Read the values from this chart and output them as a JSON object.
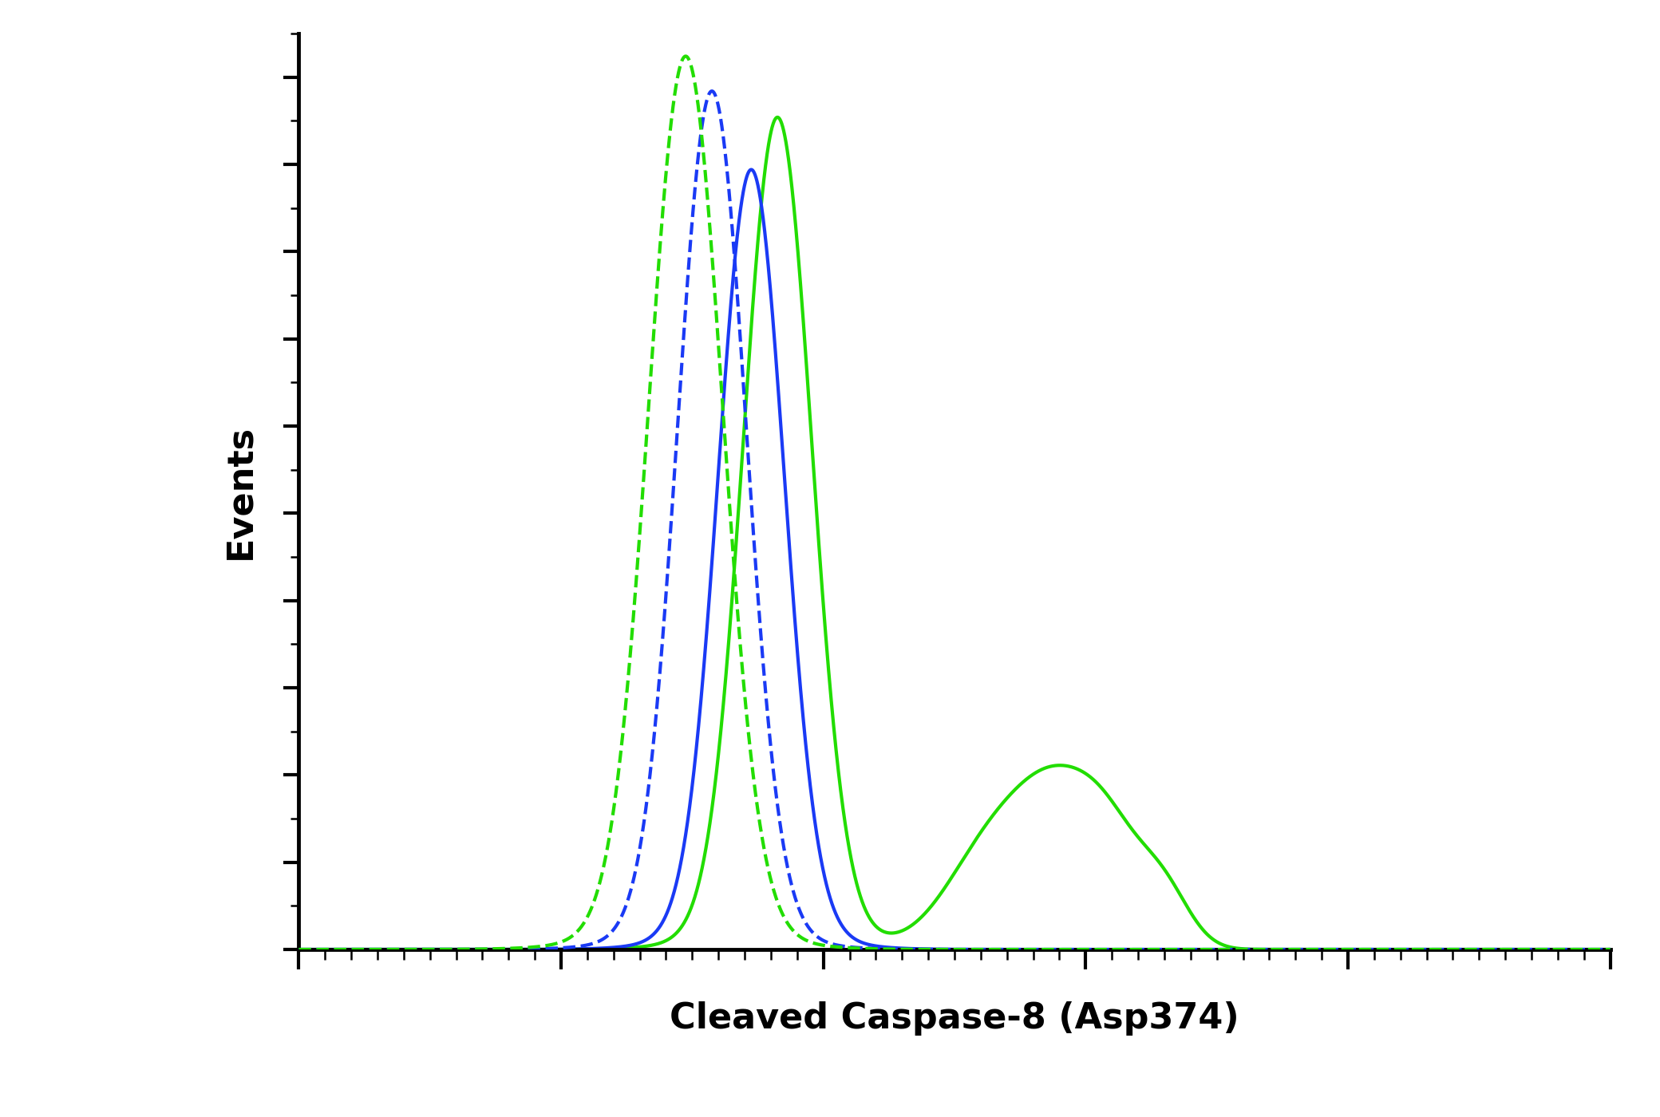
{
  "title": "",
  "xlabel": "Cleaved Caspase-8 (Asp374)",
  "ylabel": "Events",
  "xlabel_fontsize": 32,
  "ylabel_fontsize": 32,
  "xlabel_fontweight": "bold",
  "ylabel_fontweight": "bold",
  "background_color": "#ffffff",
  "line_color_blue": "#1a3af5",
  "line_color_green": "#22dd00",
  "line_width": 3.0,
  "xlim": [
    0,
    1000
  ],
  "ylim": [
    0,
    1050
  ]
}
